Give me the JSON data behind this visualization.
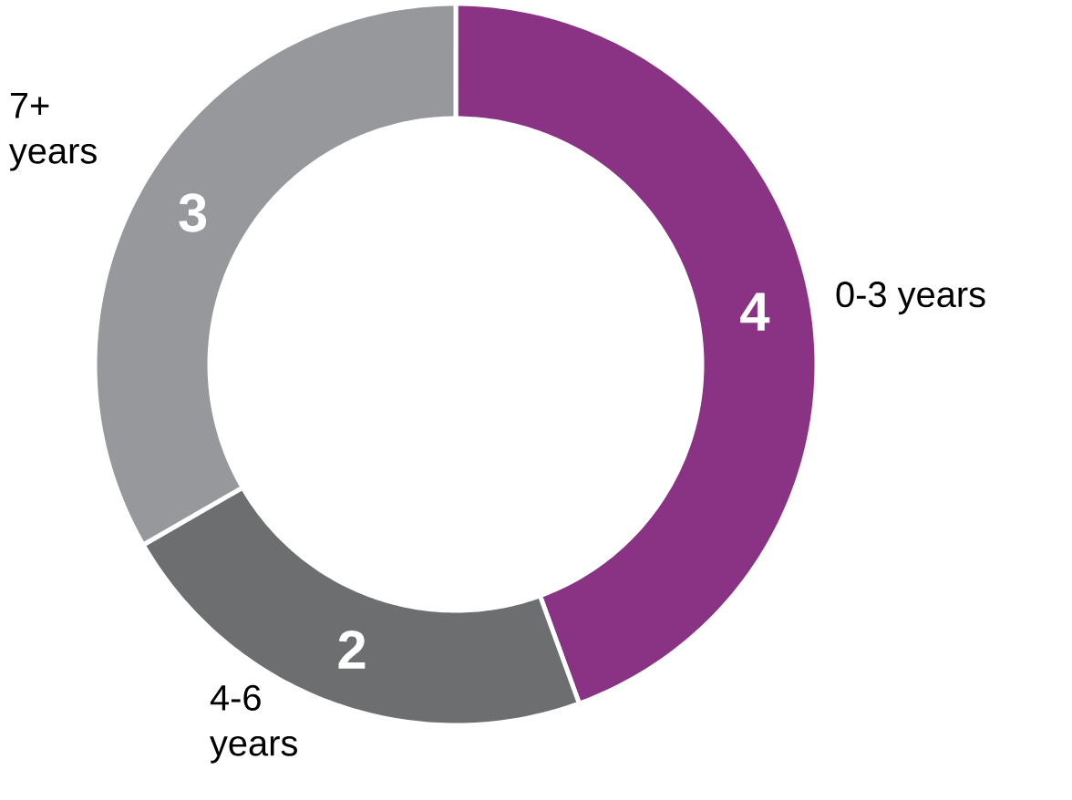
{
  "chart_data": {
    "type": "donut",
    "categories": [
      "0-3 years",
      "4-6 years",
      "7+ years"
    ],
    "values": [
      4,
      2,
      3
    ],
    "colors": [
      "#8a3384",
      "#6d6e70",
      "#97989b"
    ],
    "data_labels": true
  }
}
